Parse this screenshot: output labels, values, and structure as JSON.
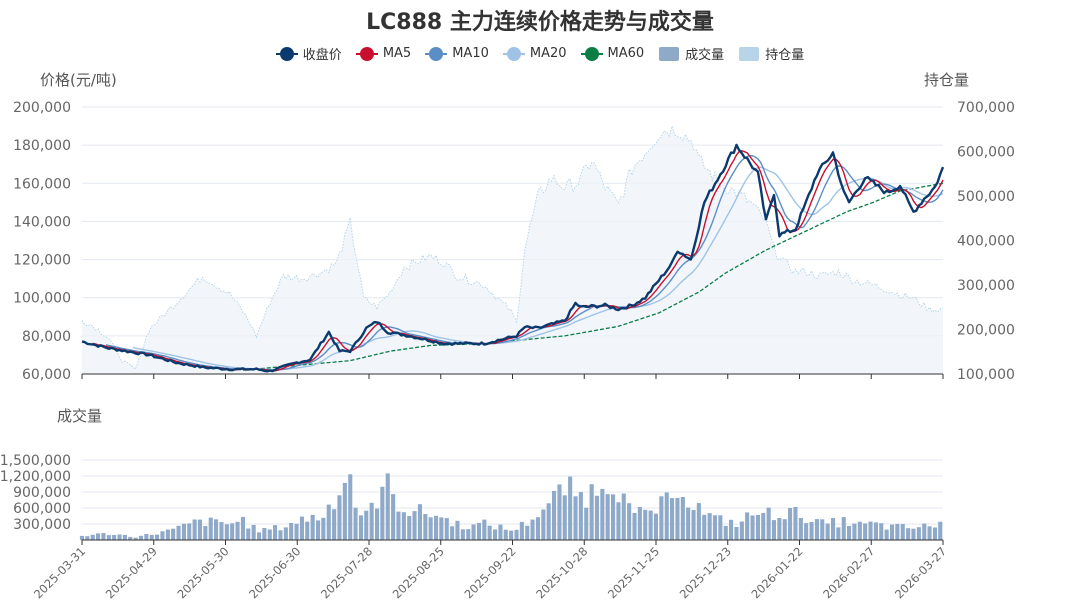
{
  "chart_data": {
    "type": "line",
    "title": "LC888 主力连续价格走势与成交量",
    "price_axis_title": "价格(元/吨)",
    "oi_axis_title": "持仓量",
    "volume_axis_title": "成交量",
    "price_ylim": [
      60000,
      200000
    ],
    "price_ticks": [
      "60,000",
      "80,000",
      "100,000",
      "120,000",
      "140,000",
      "160,000",
      "180,000",
      "200,000"
    ],
    "oi_ylim": [
      100000,
      700000
    ],
    "oi_ticks": [
      "100,000",
      "200,000",
      "300,000",
      "400,000",
      "500,000",
      "600,000",
      "700,000"
    ],
    "volume_ylim": [
      0,
      1800000
    ],
    "volume_ticks": [
      "300,000",
      "600,000",
      "900,000",
      "1,200,000",
      "1,500,000"
    ],
    "date_ticks": [
      "2025-03-31",
      "2025-04-29",
      "2025-05-30",
      "2025-06-30",
      "2025-07-28",
      "2025-08-25",
      "2025-09-22",
      "2025-10-28",
      "2025-11-25",
      "2025-12-23",
      "2026-01-22",
      "2026-02-27",
      "2026-03-27"
    ],
    "trading_days": 240,
    "colors": {
      "close": "#0b3a6e",
      "ma5": "#c8102e",
      "ma10": "#5b8ec7",
      "ma20": "#9ec3e6",
      "ma60": "#0a7d45",
      "volume": "#8fa9c9",
      "open_interest": "#b7d4e8"
    },
    "legend": [
      {
        "key": "close",
        "label": "收盘价",
        "kind": "dot"
      },
      {
        "key": "ma5",
        "label": "MA5",
        "kind": "line"
      },
      {
        "key": "ma10",
        "label": "MA10",
        "kind": "line"
      },
      {
        "key": "ma20",
        "label": "MA20",
        "kind": "line"
      },
      {
        "key": "ma60",
        "label": "MA60",
        "kind": "line"
      },
      {
        "key": "volume",
        "label": "成交量",
        "kind": "box"
      },
      {
        "key": "open_interest",
        "label": "持仓量",
        "kind": "box"
      }
    ],
    "close_keypoints": [
      [
        0,
        77000
      ],
      [
        10,
        73500
      ],
      [
        25,
        70000
      ],
      [
        35,
        66000
      ],
      [
        45,
        63500
      ],
      [
        55,
        62500
      ],
      [
        65,
        62500
      ],
      [
        70,
        61500
      ],
      [
        80,
        66000
      ],
      [
        85,
        67500
      ],
      [
        92,
        82000
      ],
      [
        96,
        72000
      ],
      [
        100,
        72000
      ],
      [
        106,
        84000
      ],
      [
        110,
        87500
      ],
      [
        114,
        82000
      ],
      [
        122,
        80000
      ],
      [
        135,
        76000
      ],
      [
        145,
        76000
      ],
      [
        150,
        76000
      ],
      [
        162,
        80000
      ],
      [
        165,
        84500
      ],
      [
        170,
        84000
      ],
      [
        180,
        88000
      ],
      [
        184,
        97000
      ],
      [
        186,
        95000
      ],
      [
        195,
        96000
      ],
      [
        200,
        94000
      ],
      [
        205,
        96000
      ],
      [
        210,
        100000
      ],
      [
        220,
        118000
      ],
      [
        222,
        125000
      ],
      [
        227,
        120000
      ],
      [
        232,
        150000
      ],
      [
        238,
        165000
      ],
      [
        244,
        180000
      ],
      [
        252,
        165000
      ],
      [
        255,
        140000
      ],
      [
        258,
        155000
      ],
      [
        260,
        133000
      ],
      [
        266,
        136000
      ],
      [
        270,
        150000
      ],
      [
        274,
        165000
      ],
      [
        280,
        176000
      ],
      [
        284,
        155000
      ],
      [
        286,
        150000
      ],
      [
        292,
        163000
      ],
      [
        295,
        160000
      ],
      [
        300,
        155000
      ],
      [
        305,
        159000
      ],
      [
        308,
        150000
      ],
      [
        310,
        145000
      ],
      [
        314,
        152000
      ],
      [
        318,
        158000
      ],
      [
        321,
        168000
      ]
    ],
    "oi_keypoints": [
      [
        0,
        220000
      ],
      [
        5,
        205000
      ],
      [
        10,
        180000
      ],
      [
        15,
        130000
      ],
      [
        20,
        110000
      ],
      [
        25,
        200000
      ],
      [
        35,
        260000
      ],
      [
        40,
        290000
      ],
      [
        45,
        320000
      ],
      [
        50,
        300000
      ],
      [
        55,
        280000
      ],
      [
        60,
        240000
      ],
      [
        63,
        210000
      ],
      [
        65,
        185000
      ],
      [
        70,
        260000
      ],
      [
        75,
        320000
      ],
      [
        82,
        315000
      ],
      [
        90,
        330000
      ],
      [
        95,
        350000
      ],
      [
        100,
        440000
      ],
      [
        105,
        270000
      ],
      [
        110,
        250000
      ],
      [
        115,
        285000
      ],
      [
        120,
        340000
      ],
      [
        130,
        365000
      ],
      [
        135,
        350000
      ],
      [
        140,
        320000
      ],
      [
        145,
        310000
      ],
      [
        150,
        300000
      ],
      [
        155,
        270000
      ],
      [
        160,
        240000
      ],
      [
        162,
        215000
      ],
      [
        165,
        380000
      ],
      [
        170,
        500000
      ],
      [
        175,
        540000
      ],
      [
        180,
        520000
      ],
      [
        185,
        530000
      ],
      [
        190,
        580000
      ],
      [
        195,
        520000
      ],
      [
        200,
        480000
      ],
      [
        205,
        560000
      ],
      [
        210,
        600000
      ],
      [
        215,
        640000
      ],
      [
        218,
        650000
      ],
      [
        222,
        650000
      ],
      [
        228,
        620000
      ],
      [
        230,
        580000
      ],
      [
        236,
        540000
      ],
      [
        240,
        520000
      ],
      [
        246,
        500000
      ],
      [
        250,
        480000
      ],
      [
        255,
        440000
      ],
      [
        258,
        380000
      ],
      [
        262,
        350000
      ],
      [
        266,
        330000
      ],
      [
        270,
        330000
      ],
      [
        275,
        320000
      ],
      [
        282,
        330000
      ],
      [
        288,
        310000
      ],
      [
        295,
        300000
      ],
      [
        300,
        290000
      ],
      [
        304,
        280000
      ],
      [
        310,
        270000
      ],
      [
        316,
        245000
      ],
      [
        321,
        245000
      ]
    ],
    "ma60_keypoints": [
      [
        60,
        62000
      ],
      [
        80,
        64500
      ],
      [
        100,
        67000
      ],
      [
        115,
        72000
      ],
      [
        130,
        75000
      ],
      [
        150,
        76000
      ],
      [
        165,
        78000
      ],
      [
        180,
        80000
      ],
      [
        200,
        85000
      ],
      [
        215,
        92000
      ],
      [
        230,
        103000
      ],
      [
        240,
        113000
      ],
      [
        255,
        125000
      ],
      [
        270,
        135000
      ],
      [
        285,
        145000
      ],
      [
        295,
        150000
      ],
      [
        305,
        156000
      ],
      [
        321,
        160000
      ]
    ],
    "volume_keypoints": [
      [
        0,
        80000
      ],
      [
        10,
        120000
      ],
      [
        20,
        60000
      ],
      [
        25,
        100000
      ],
      [
        35,
        200000
      ],
      [
        40,
        300000
      ],
      [
        45,
        350000
      ],
      [
        55,
        300000
      ],
      [
        60,
        380000
      ],
      [
        65,
        180000
      ],
      [
        70,
        200000
      ],
      [
        75,
        250000
      ],
      [
        80,
        350000
      ],
      [
        85,
        420000
      ],
      [
        90,
        450000
      ],
      [
        92,
        620000
      ],
      [
        95,
        900000
      ],
      [
        100,
        1250000
      ],
      [
        102,
        700000
      ],
      [
        105,
        350000
      ],
      [
        110,
        800000
      ],
      [
        114,
        1000000
      ],
      [
        118,
        700000
      ],
      [
        122,
        550000
      ],
      [
        130,
        500000
      ],
      [
        135,
        400000
      ],
      [
        140,
        300000
      ],
      [
        145,
        250000
      ],
      [
        150,
        300000
      ],
      [
        155,
        250000
      ],
      [
        160,
        180000
      ],
      [
        165,
        300000
      ],
      [
        170,
        500000
      ],
      [
        175,
        700000
      ],
      [
        180,
        1000000
      ],
      [
        185,
        800000
      ],
      [
        190,
        900000
      ],
      [
        195,
        1200000
      ],
      [
        200,
        1000000
      ],
      [
        205,
        450000
      ],
      [
        210,
        500000
      ],
      [
        215,
        600000
      ],
      [
        218,
        700000
      ],
      [
        220,
        650000
      ],
      [
        222,
        1100000
      ],
      [
        226,
        800000
      ],
      [
        230,
        600000
      ],
      [
        235,
        400000
      ],
      [
        240,
        350000
      ],
      [
        245,
        300000
      ],
      [
        250,
        500000
      ],
      [
        255,
        480000
      ],
      [
        260,
        520000
      ],
      [
        265,
        500000
      ],
      [
        270,
        450000
      ],
      [
        275,
        300000
      ],
      [
        280,
        320000
      ],
      [
        285,
        350000
      ],
      [
        290,
        280000
      ],
      [
        295,
        300000
      ],
      [
        300,
        250000
      ],
      [
        305,
        240000
      ],
      [
        310,
        230000
      ],
      [
        316,
        260000
      ],
      [
        321,
        340000
      ]
    ]
  }
}
